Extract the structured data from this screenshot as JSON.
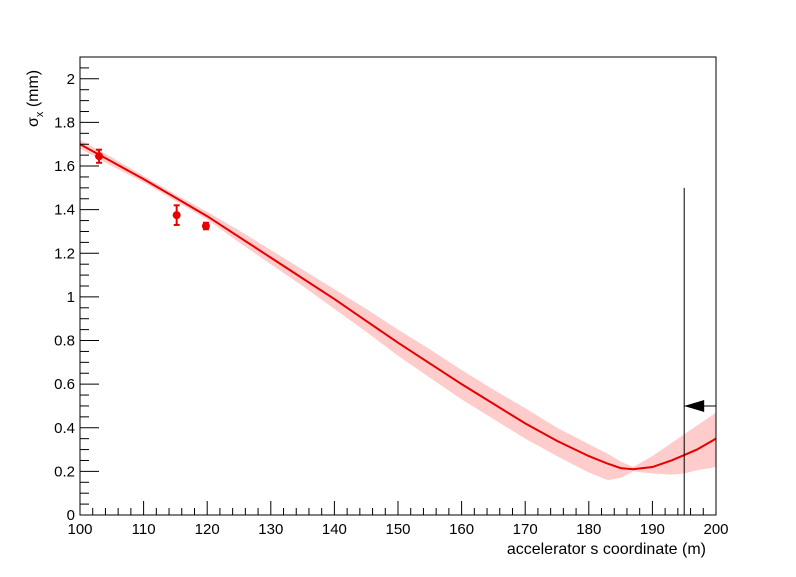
{
  "chart_data": {
    "type": "line",
    "title": "",
    "xlabel": "accelerator s coordinate (m)",
    "ylabel_main": "σ",
    "ylabel_sub": "x",
    "ylabel_unit": " (mm)",
    "xlim": [
      100,
      200
    ],
    "ylim": [
      0,
      2.1
    ],
    "x_ticks": [
      100,
      110,
      120,
      130,
      140,
      150,
      160,
      170,
      180,
      190,
      200
    ],
    "y_ticks": [
      0,
      0.2,
      0.4,
      0.6,
      0.8,
      1,
      1.2,
      1.4,
      1.6,
      1.8,
      2
    ],
    "x_tick_labels": [
      "100",
      "110",
      "120",
      "130",
      "140",
      "150",
      "160",
      "170",
      "180",
      "190",
      "200"
    ],
    "y_tick_labels": [
      "0",
      "0.2",
      "0.4",
      "0.6",
      "0.8",
      "1",
      "1.2",
      "1.4",
      "1.6",
      "1.8",
      "2"
    ],
    "grid": false,
    "colors": {
      "fit": "#e60000",
      "band": "#ffcccc",
      "data": "#e60000",
      "marker": "#000000"
    },
    "fit_curve": {
      "x": [
        100,
        105,
        110,
        115,
        120,
        125,
        130,
        135,
        140,
        145,
        150,
        155,
        160,
        165,
        170,
        175,
        180,
        183,
        185,
        187,
        190,
        193,
        195,
        197,
        200
      ],
      "y": [
        1.7,
        1.62,
        1.54,
        1.455,
        1.37,
        1.275,
        1.18,
        1.085,
        0.99,
        0.89,
        0.79,
        0.695,
        0.6,
        0.51,
        0.42,
        0.34,
        0.27,
        0.235,
        0.215,
        0.21,
        0.22,
        0.25,
        0.275,
        0.3,
        0.35
      ]
    },
    "band_upper": [
      1.72,
      1.64,
      1.555,
      1.47,
      1.39,
      1.305,
      1.215,
      1.125,
      1.035,
      0.945,
      0.85,
      0.76,
      0.665,
      0.575,
      0.49,
      0.4,
      0.325,
      0.28,
      0.245,
      0.22,
      0.27,
      0.33,
      0.37,
      0.41,
      0.47
    ],
    "band_lower": [
      1.68,
      1.6,
      1.525,
      1.44,
      1.355,
      1.25,
      1.15,
      1.05,
      0.945,
      0.84,
      0.73,
      0.63,
      0.53,
      0.44,
      0.35,
      0.27,
      0.195,
      0.16,
      0.17,
      0.2,
      0.19,
      0.185,
      0.19,
      0.205,
      0.22
    ],
    "points": [
      {
        "x": 103,
        "y": 1.645,
        "err": 0.03
      },
      {
        "x": 115.2,
        "y": 1.375,
        "err": 0.045
      },
      {
        "x": 119.8,
        "y": 1.325,
        "err": 0.015
      }
    ],
    "marker_line": {
      "x": 195,
      "y_top": 1.5,
      "arrow_y": 0.5,
      "arrow_to_x": 195,
      "arrow_from_x": 200
    }
  }
}
